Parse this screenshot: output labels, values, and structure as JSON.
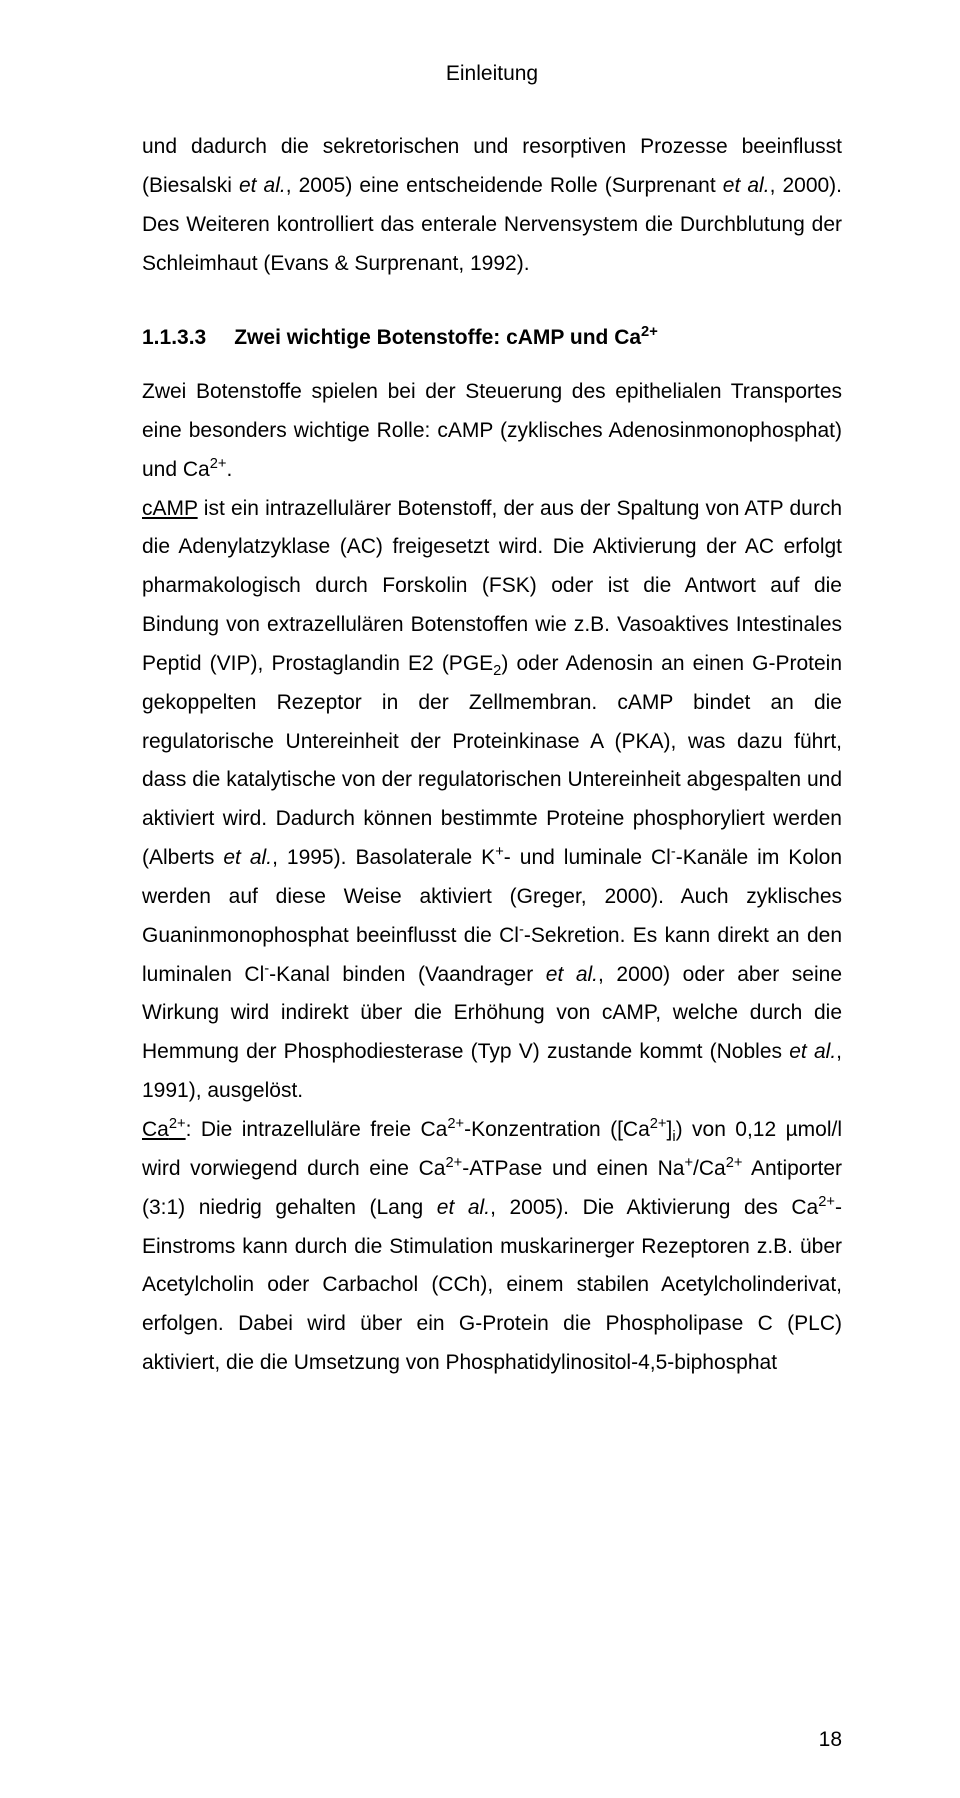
{
  "header": "Einleitung",
  "para1_parts": {
    "p1": "und dadurch die sekretorischen und resorptiven Prozesse beeinflusst (Biesalski ",
    "p1_it": "et al.",
    "p2": ", 2005) eine entscheidende Rolle (Surprenant ",
    "p2_it": "et al.",
    "p3": ", 2000). Des Weiteren kontrolliert das enterale Nervensystem die Durchblutung der Schleimhaut (Evans & Surprenant, 1992)."
  },
  "subheading": {
    "number": "1.1.3.3",
    "title_lead": "Zwei wichtige Botenstoffe: cAMP und Ca",
    "title_sup": "2+"
  },
  "body": {
    "t1": "Zwei Botenstoffe spielen bei der Steuerung des epithelialen Transportes eine besonders wichtige Rolle: cAMP (zyklisches Adenosinmonophosphat) und Ca",
    "t1_sup": "2+",
    "t1b": ".",
    "cAMP_u": "cAMP",
    "t2": " ist ein intrazellulärer Botenstoff, der aus der Spaltung von ATP durch die Adenylatzyklase (AC) freigesetzt wird. Die Aktivierung der AC erfolgt pharmakologisch durch Forskolin (FSK) oder ist die Antwort auf die Bindung von extrazellulären Botenstoffen wie z.B. Vasoaktives Intestinales Peptid (VIP), Prostaglandin E2 (PGE",
    "t2_sub": "2",
    "t3": ") oder Adenosin an einen G-Protein gekoppelten Rezeptor in der Zellmembran. cAMP bindet an die regulatorische Untereinheit der Proteinkinase A (PKA), was dazu führt, dass die katalytische von der regulatorischen Untereinheit abgespalten und aktiviert wird. Dadurch können bestimmte Proteine phosphoryliert werden (Alberts ",
    "t3_it": "et al.",
    "t4": ", 1995). Basolaterale K",
    "t4_sup": "+",
    "t5": "- und luminale Cl",
    "t5_sup": "-",
    "t6": "-Kanäle im Kolon werden auf diese Weise aktiviert (Greger, 2000). Auch zyklisches Guaninmonophosphat beeinflusst die Cl",
    "t6_sup": "-",
    "t7": "-Sekretion. Es kann direkt an den luminalen Cl",
    "t7_sup": "-",
    "t8": "-Kanal binden (Vaandrager ",
    "t8_it": "et al.",
    "t9": ", 2000) oder aber seine Wirkung wird indirekt über die Erhöhung von cAMP, welche durch die Hemmung der Phosphodiesterase (Typ V) zustande kommt (Nobles ",
    "t9_it": "et al.",
    "t10": ", 1991), ausgelöst.",
    "Ca_u": "Ca",
    "Ca_u_sup": "2+",
    "t11": ": Die intrazelluläre freie Ca",
    "t11_sup": "2+",
    "t12": "-Konzentration ([Ca",
    "t12_sup": "2+",
    "t13": "]",
    "t13_sub": "i",
    "t14": ") von 0,12 µmol/l wird vorwiegend durch eine Ca",
    "t14_sup": "2+",
    "t15": "-ATPase und einen Na",
    "t15_sup": "+",
    "t16": "/Ca",
    "t16_sup": "2+",
    "t17": " Antiporter (3:1) niedrig gehalten (Lang ",
    "t17_it": "et al.",
    "t18": ", 2005). Die Aktivierung des Ca",
    "t18_sup": "2+",
    "t19": "-Einstroms kann durch die Stimulation muskarinerger Rezeptoren z.B. über Acetylcholin oder Carbachol (CCh), einem stabilen Acetylcholinderivat, erfolgen. Dabei wird über ein G-Protein die Phospholipase C (PLC) aktiviert, die die Umsetzung von Phosphatidylinositol-4,5-biphosphat"
  },
  "page_number": "18"
}
